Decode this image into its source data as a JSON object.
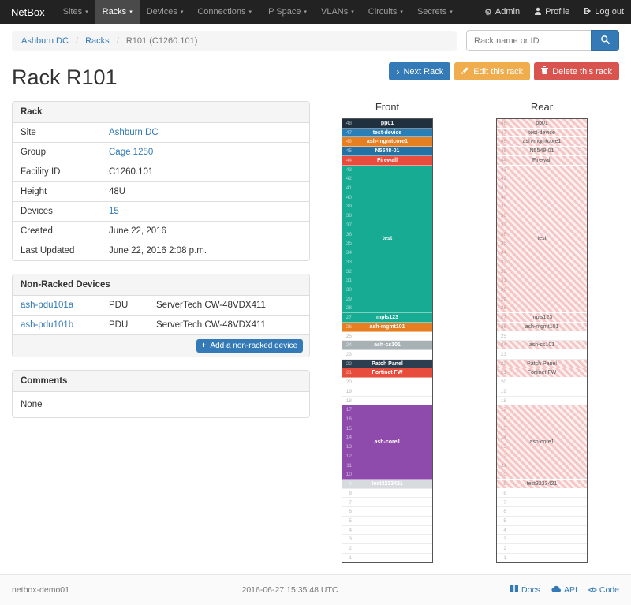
{
  "navbar": {
    "brand": "NetBox",
    "items": [
      {
        "label": "Sites"
      },
      {
        "label": "Racks"
      },
      {
        "label": "Devices"
      },
      {
        "label": "Connections"
      },
      {
        "label": "IP Space"
      },
      {
        "label": "VLANs"
      },
      {
        "label": "Circuits"
      },
      {
        "label": "Secrets"
      }
    ],
    "admin": "Admin",
    "profile": "Profile",
    "logout": "Log out"
  },
  "breadcrumb": {
    "site": "Ashburn DC",
    "section": "Racks",
    "current": "R101 (C1260.101)"
  },
  "search": {
    "placeholder": "Rack name or ID"
  },
  "page": {
    "title": "Rack R101"
  },
  "actions": {
    "next": "Next Rack",
    "edit": "Edit this rack",
    "delete": "Delete this rack"
  },
  "rack_panel": {
    "title": "Rack",
    "rows": [
      {
        "label": "Site",
        "value": "Ashburn DC"
      },
      {
        "label": "Group",
        "value": "Cage 1250"
      },
      {
        "label": "Facility ID",
        "value": "C1260.101"
      },
      {
        "label": "Height",
        "value": "48U"
      },
      {
        "label": "Devices",
        "value": "15"
      },
      {
        "label": "Created",
        "value": "June 22, 2016"
      },
      {
        "label": "Last Updated",
        "value": "June 22, 2016 2:08 p.m."
      }
    ]
  },
  "nonracked": {
    "title": "Non-Racked Devices",
    "rows": [
      {
        "name": "ash-pdu101a",
        "role": "PDU",
        "model": "ServerTech CW-48VDX411"
      },
      {
        "name": "ash-pdu101b",
        "role": "PDU",
        "model": "ServerTech CW-48VDX411"
      }
    ],
    "add_label": "Add a non-racked device"
  },
  "comments": {
    "title": "Comments",
    "body": "None"
  },
  "elevations": {
    "front_title": "Front",
    "rear_title": "Rear",
    "total_units": 48,
    "devices": [
      {
        "name": "pp01",
        "top_unit": 48,
        "u_height": 1,
        "color": "#20303f"
      },
      {
        "name": "test-device",
        "top_unit": 47,
        "u_height": 1,
        "color": "#2980b9"
      },
      {
        "name": "ash-mgmtcore1",
        "top_unit": 46,
        "u_height": 1,
        "color": "#e67e22"
      },
      {
        "name": "N5548-01",
        "top_unit": 45,
        "u_height": 1,
        "color": "#2471a3"
      },
      {
        "name": "Firewall",
        "top_unit": 44,
        "u_height": 1,
        "color": "#e74c3c"
      },
      {
        "name": "test",
        "top_unit": 43,
        "u_height": 16,
        "color": "#17ab93"
      },
      {
        "name": "mpls123",
        "top_unit": 27,
        "u_height": 1,
        "color": "#17ab93"
      },
      {
        "name": "ash-mgmt101",
        "top_unit": 26,
        "u_height": 1,
        "color": "#e67e22"
      },
      {
        "name": "ash-cs101",
        "top_unit": 24,
        "u_height": 1,
        "color": "#a8b1b4"
      },
      {
        "name": "Patch Panel",
        "top_unit": 22,
        "u_height": 1,
        "color": "#2d3e50"
      },
      {
        "name": "Fortinet FW",
        "top_unit": 21,
        "u_height": 1,
        "color": "#e74c3c"
      },
      {
        "name": "ash-core1",
        "top_unit": 17,
        "u_height": 8,
        "color": "#8f4bab"
      },
      {
        "name": "test3233421",
        "top_unit": 9,
        "u_height": 1,
        "color": "#d7dbdd"
      }
    ]
  },
  "footer": {
    "hostname": "netbox-demo01",
    "timestamp": "2016-06-27 15:35:48 UTC",
    "docs": "Docs",
    "api": "API",
    "code": "Code"
  },
  "colors": {
    "primary": "#337ab7",
    "warning": "#f0ad4e",
    "danger": "#d9534f",
    "navbar_bg": "#222222",
    "rear_stripe": "#f5c6c6"
  }
}
